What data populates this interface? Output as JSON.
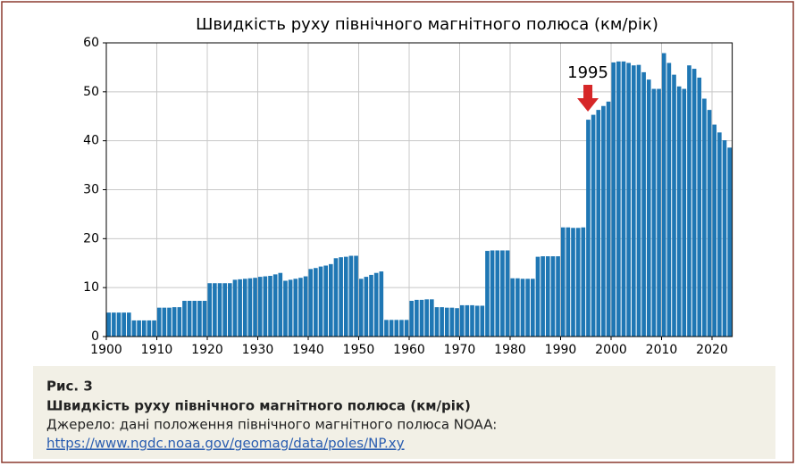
{
  "chart_data": {
    "type": "bar",
    "title": "Швидкість руху північного магнітного полюса (км/рік)",
    "x": [
      1900,
      1901,
      1902,
      1903,
      1904,
      1905,
      1906,
      1907,
      1908,
      1909,
      1910,
      1911,
      1912,
      1913,
      1914,
      1915,
      1916,
      1917,
      1918,
      1919,
      1920,
      1921,
      1922,
      1923,
      1924,
      1925,
      1926,
      1927,
      1928,
      1929,
      1930,
      1931,
      1932,
      1933,
      1934,
      1935,
      1936,
      1937,
      1938,
      1939,
      1940,
      1941,
      1942,
      1943,
      1944,
      1945,
      1946,
      1947,
      1948,
      1949,
      1950,
      1951,
      1952,
      1953,
      1954,
      1955,
      1956,
      1957,
      1958,
      1959,
      1960,
      1961,
      1962,
      1963,
      1964,
      1965,
      1966,
      1967,
      1968,
      1969,
      1970,
      1971,
      1972,
      1973,
      1974,
      1975,
      1976,
      1977,
      1978,
      1979,
      1980,
      1981,
      1982,
      1983,
      1984,
      1985,
      1986,
      1987,
      1988,
      1989,
      1990,
      1991,
      1992,
      1993,
      1994,
      1995,
      1996,
      1997,
      1998,
      1999,
      2000,
      2001,
      2002,
      2003,
      2004,
      2005,
      2006,
      2007,
      2008,
      2009,
      2010,
      2011,
      2012,
      2013,
      2014,
      2015,
      2016,
      2017,
      2018,
      2019,
      2020,
      2021,
      2022,
      2023
    ],
    "values": [
      4.9,
      4.9,
      4.9,
      4.9,
      4.9,
      3.3,
      3.3,
      3.3,
      3.3,
      3.3,
      5.9,
      5.9,
      5.9,
      6.0,
      6.0,
      7.3,
      7.3,
      7.3,
      7.3,
      7.3,
      10.9,
      10.9,
      10.9,
      10.9,
      10.9,
      11.6,
      11.7,
      11.8,
      11.9,
      12.0,
      12.2,
      12.3,
      12.4,
      12.7,
      13.0,
      11.4,
      11.6,
      11.8,
      12.0,
      12.3,
      13.8,
      14.0,
      14.3,
      14.5,
      14.8,
      16.0,
      16.2,
      16.3,
      16.5,
      16.5,
      11.8,
      12.2,
      12.6,
      13.0,
      13.3,
      3.4,
      3.4,
      3.4,
      3.4,
      3.4,
      7.3,
      7.5,
      7.5,
      7.6,
      7.6,
      6.0,
      6.0,
      5.9,
      5.9,
      5.8,
      6.4,
      6.4,
      6.4,
      6.3,
      6.3,
      17.5,
      17.6,
      17.6,
      17.6,
      17.6,
      11.9,
      11.9,
      11.8,
      11.8,
      11.8,
      16.3,
      16.4,
      16.4,
      16.4,
      16.4,
      22.3,
      22.3,
      22.2,
      22.2,
      22.3,
      44.3,
      45.3,
      46.3,
      47.1,
      48.0,
      56.0,
      56.2,
      56.2,
      55.9,
      55.4,
      55.5,
      54.0,
      52.5,
      50.6,
      50.6,
      57.9,
      55.9,
      53.5,
      51.1,
      50.6,
      55.4,
      54.7,
      52.9,
      48.6,
      46.3,
      43.3,
      41.7,
      40.1,
      38.6
    ],
    "color": "#1f77b4",
    "xlim": [
      1900,
      2024
    ],
    "ylim": [
      0,
      60
    ],
    "xticks": [
      1900,
      1910,
      1920,
      1930,
      1940,
      1950,
      1960,
      1970,
      1980,
      1990,
      2000,
      2010,
      2020
    ],
    "yticks": [
      0,
      10,
      20,
      30,
      40,
      50,
      60
    ],
    "grid": true,
    "annotation": {
      "text": "1995",
      "x": 1995,
      "color": "#d62728"
    }
  },
  "caption": {
    "label": "Рис. 3",
    "title": "Швидкість руху північного магнітного полюса (км/рік)",
    "source": "Джерело: дані положення північного магнітного полюса NOAA:",
    "link": "https://www.ngdc.noaa.gov/geomag/data/poles/NP.xy"
  }
}
